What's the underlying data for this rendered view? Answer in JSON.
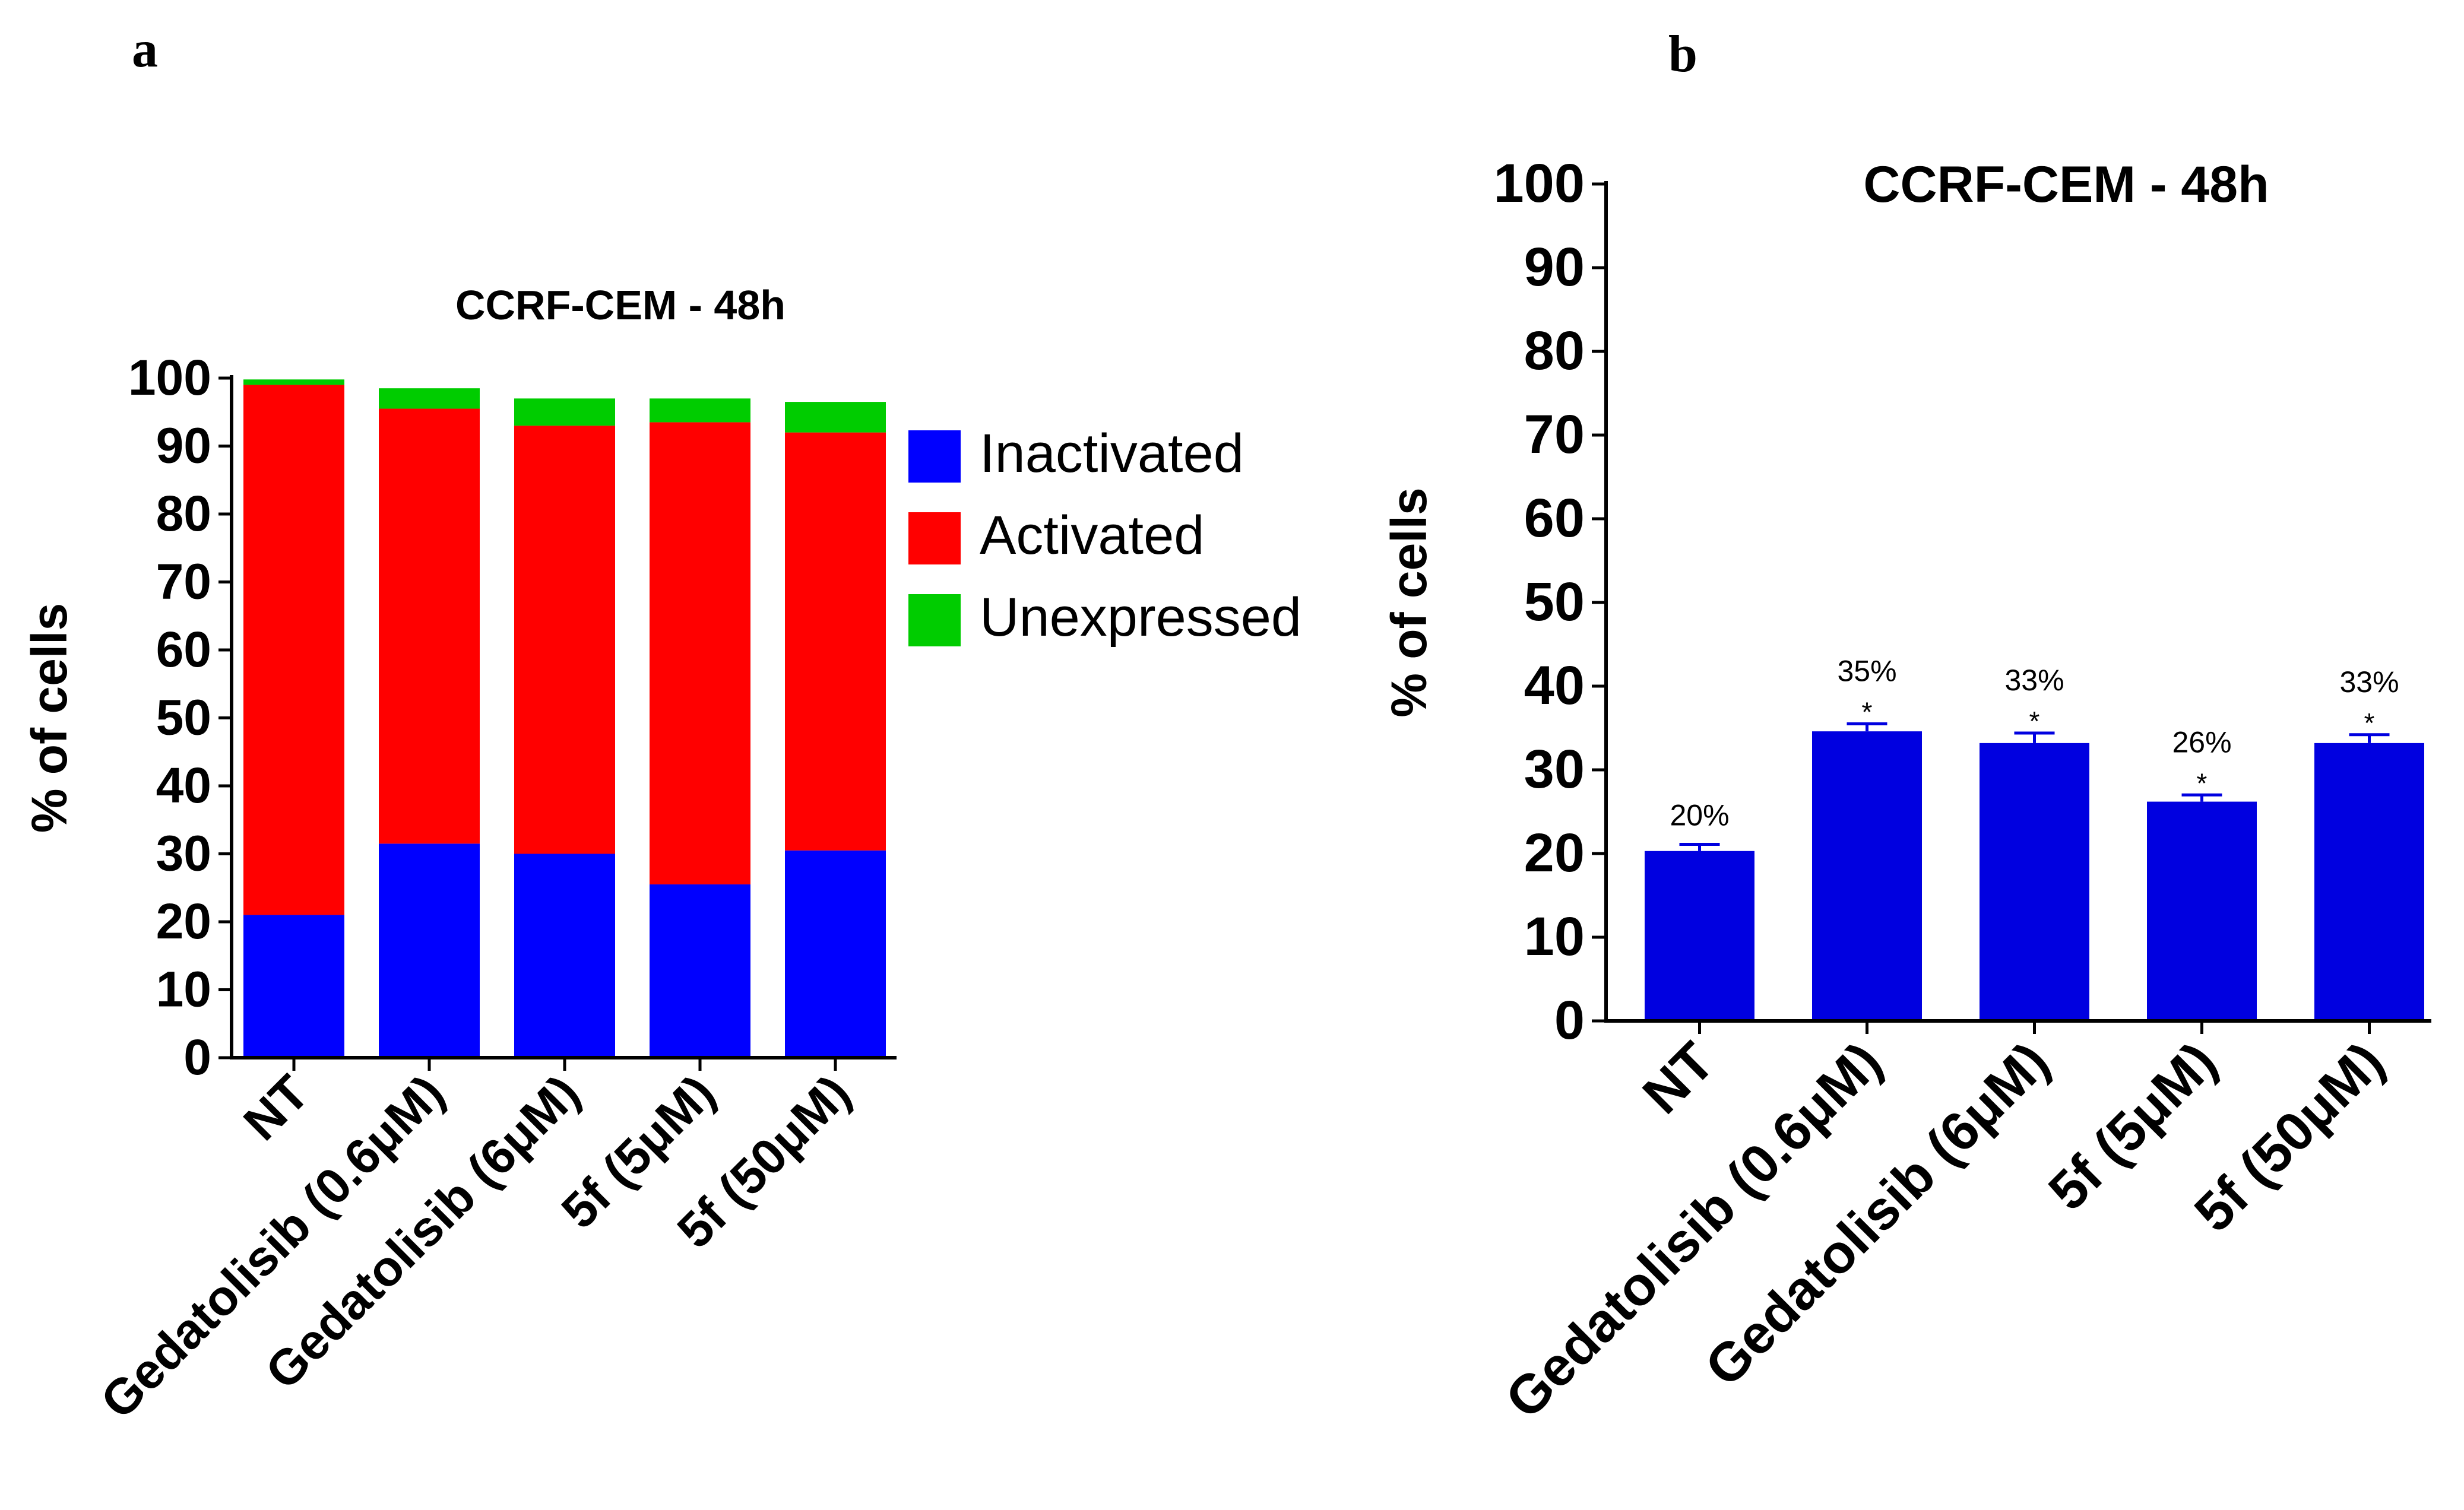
{
  "panels": [
    "a",
    "b"
  ],
  "colors": {
    "inactivated": "#0000ff",
    "activated": "#ff0000",
    "unexpressed": "#00cc00",
    "bar": "#0000e0",
    "axis": "#000000"
  },
  "chart_data": [
    {
      "type": "bar",
      "stacked": true,
      "title": "CCRF-CEM - 48h",
      "xlabel": "",
      "ylabel": "% of cells",
      "ylim": [
        0,
        100
      ],
      "yticks": [
        0,
        10,
        20,
        30,
        40,
        50,
        60,
        70,
        80,
        90,
        100
      ],
      "categories": [
        "NT",
        "Gedatolisib (0.6μM)",
        "Gedatolisib (6μM)",
        "5f (5μM)",
        "5f (50μM)"
      ],
      "series": [
        {
          "name": "Inactivated",
          "color_key": "inactivated",
          "values": [
            21,
            31.5,
            30,
            25.5,
            30.5
          ]
        },
        {
          "name": "Activated",
          "color_key": "activated",
          "values": [
            78,
            64,
            63,
            68,
            61.5
          ]
        },
        {
          "name": "Unexpressed",
          "color_key": "unexpressed",
          "values": [
            0.8,
            3,
            4,
            3.5,
            4.5
          ]
        }
      ],
      "legend": "right"
    },
    {
      "type": "bar",
      "title": "CCRF-CEM - 48h",
      "xlabel": "",
      "ylabel": "% of cells",
      "ylim": [
        0,
        100
      ],
      "yticks": [
        0,
        10,
        20,
        30,
        40,
        50,
        60,
        70,
        80,
        90,
        100
      ],
      "categories": [
        "NT",
        "Gedatolisib (0.6μM)",
        "Gedatolisib (6μM)",
        "5f (5μM)",
        "5f (50μM)"
      ],
      "values": [
        20.3,
        34.6,
        33.2,
        26.2,
        33.2
      ],
      "errors": [
        0.8,
        0.9,
        1.2,
        0.8,
        1.0
      ],
      "data_labels": [
        "20%",
        "35%",
        "33%",
        "26%",
        "33%"
      ],
      "significance": [
        "",
        "*",
        "*",
        "*",
        "*"
      ]
    }
  ]
}
